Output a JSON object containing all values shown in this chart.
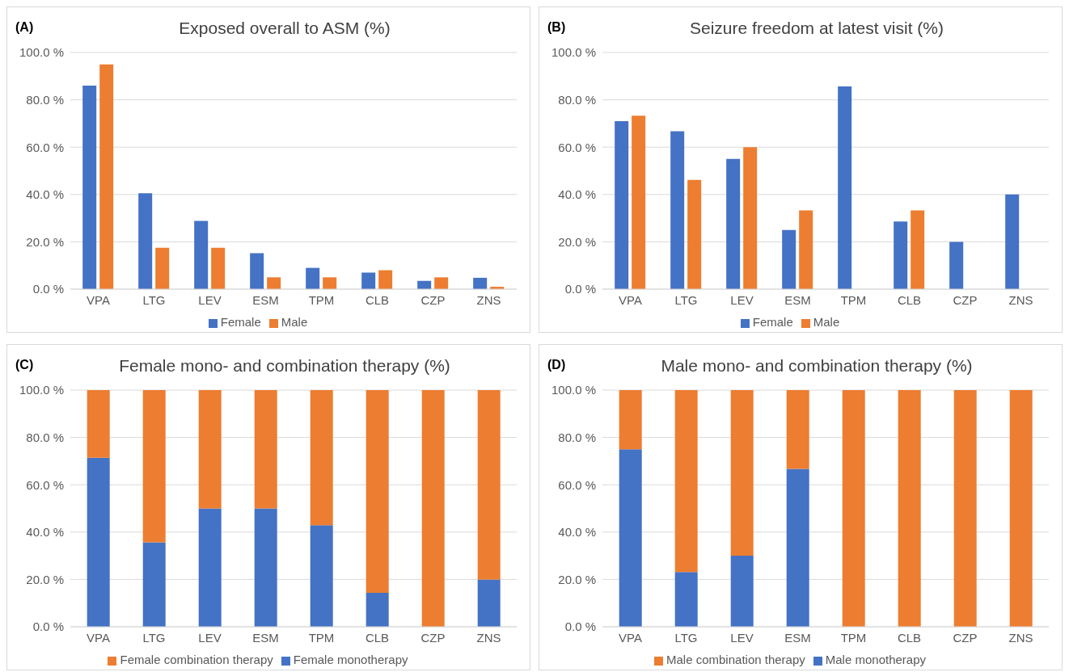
{
  "chart_data": [
    {
      "type": "bar",
      "title": "Exposed overall to ASM (%)",
      "annotations": [
        "(A)"
      ],
      "categories": [
        "VPA",
        "LTG",
        "LEV",
        "ESM",
        "TPM",
        "CLB",
        "CZP",
        "ZNS"
      ],
      "series": [
        {
          "name": "Female",
          "color": "#4472c4",
          "values": [
            86,
            40.5,
            28.8,
            15.2,
            9,
            7,
            3.5,
            4.8
          ]
        },
        {
          "name": "Male",
          "color": "#ed7d31",
          "values": [
            95,
            17.5,
            17.5,
            5,
            5,
            8,
            5,
            1
          ]
        }
      ],
      "ylim": [
        0,
        100
      ],
      "yticks": [
        {
          "value": 0,
          "label": "0.0 %"
        },
        {
          "value": 20,
          "label": "20.0 %"
        },
        {
          "value": 40,
          "label": "40.0 %"
        },
        {
          "value": 60,
          "label": "60.0 %"
        },
        {
          "value": 80,
          "label": "80.0 %"
        },
        {
          "value": 100,
          "label": "100.0 %"
        }
      ],
      "grid": "y",
      "legend": "bottom"
    },
    {
      "type": "bar",
      "title": "Seizure freedom at latest visit (%)",
      "annotations": [
        "(B)"
      ],
      "categories": [
        "VPA",
        "LTG",
        "LEV",
        "ESM",
        "TPM",
        "CLB",
        "CZP",
        "ZNS"
      ],
      "series": [
        {
          "name": "Female",
          "color": "#4472c4",
          "values": [
            71,
            66.7,
            55,
            25,
            85.7,
            28.6,
            20,
            40
          ]
        },
        {
          "name": "Male",
          "color": "#ed7d31",
          "values": [
            73.3,
            46.2,
            60,
            33.3,
            0,
            33.3,
            0,
            0
          ]
        }
      ],
      "ylim": [
        0,
        100
      ],
      "yticks": [
        {
          "value": 0,
          "label": "0.0 %"
        },
        {
          "value": 20,
          "label": "20.0 %"
        },
        {
          "value": 40,
          "label": "40.0 %"
        },
        {
          "value": 60,
          "label": "60.0 %"
        },
        {
          "value": 80,
          "label": "80.0 %"
        },
        {
          "value": 100,
          "label": "100.0 %"
        }
      ],
      "grid": "y",
      "legend": "bottom"
    },
    {
      "type": "bar",
      "stacked": true,
      "title": "Female mono- and combination therapy (%)",
      "annotations": [
        "(C)"
      ],
      "categories": [
        "VPA",
        "LTG",
        "LEV",
        "ESM",
        "TPM",
        "CLB",
        "CZP",
        "ZNS"
      ],
      "series": [
        {
          "name": "Female monotherapy",
          "color": "#4472c4",
          "values": [
            71.4,
            35.7,
            50,
            50,
            42.9,
            14.3,
            0,
            20
          ]
        },
        {
          "name": "Female combination therapy",
          "color": "#ed7d31",
          "values": [
            28.6,
            64.3,
            50,
            50,
            57.1,
            85.7,
            100,
            80
          ]
        }
      ],
      "ylim": [
        0,
        100
      ],
      "yticks": [
        {
          "value": 0,
          "label": "0.0 %"
        },
        {
          "value": 20,
          "label": "20.0 %"
        },
        {
          "value": 40,
          "label": "40.0 %"
        },
        {
          "value": 60,
          "label": "60.0 %"
        },
        {
          "value": 80,
          "label": "80.0 %"
        },
        {
          "value": 100,
          "label": "100.0 %"
        }
      ],
      "grid": "y",
      "legend": "bottom"
    },
    {
      "type": "bar",
      "stacked": true,
      "title": "Male mono- and combination therapy (%)",
      "annotations": [
        "(D)"
      ],
      "categories": [
        "VPA",
        "LTG",
        "LEV",
        "ESM",
        "TPM",
        "CLB",
        "CZP",
        "ZNS"
      ],
      "series": [
        {
          "name": "Male monotherapy",
          "color": "#4472c4",
          "values": [
            75,
            23.1,
            30,
            66.7,
            0,
            0,
            0,
            0
          ]
        },
        {
          "name": "Male combination therapy",
          "color": "#ed7d31",
          "values": [
            25,
            76.9,
            70,
            33.3,
            100,
            100,
            100,
            100
          ]
        }
      ],
      "ylim": [
        0,
        100
      ],
      "yticks": [
        {
          "value": 0,
          "label": "0.0 %"
        },
        {
          "value": 20,
          "label": "20.0 %"
        },
        {
          "value": 40,
          "label": "40.0 %"
        },
        {
          "value": 60,
          "label": "60.0 %"
        },
        {
          "value": 80,
          "label": "80.0 %"
        },
        {
          "value": 100,
          "label": "100.0 %"
        }
      ],
      "grid": "y",
      "legend": "bottom"
    }
  ]
}
